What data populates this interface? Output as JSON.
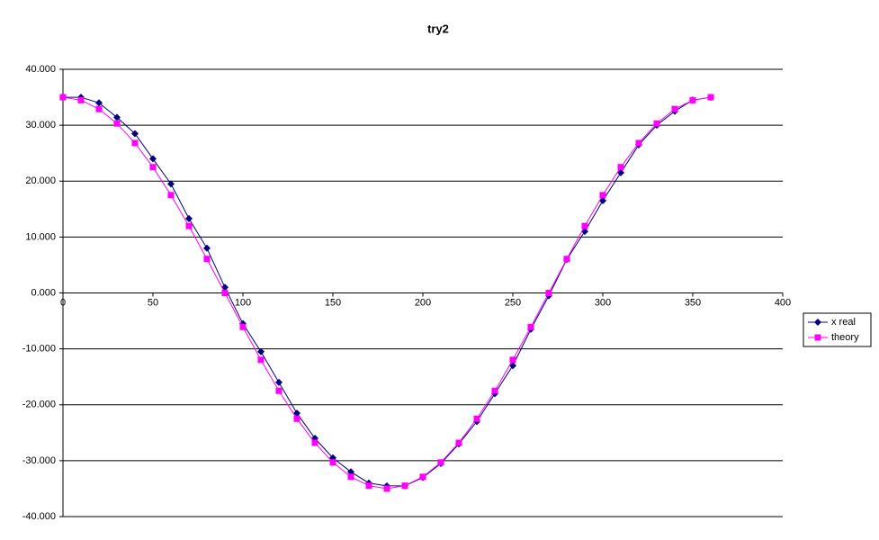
{
  "chart_data": {
    "type": "line",
    "title": "try2",
    "x": [
      0,
      10,
      20,
      30,
      40,
      50,
      60,
      70,
      80,
      90,
      100,
      110,
      120,
      130,
      140,
      150,
      160,
      170,
      180,
      190,
      200,
      210,
      220,
      230,
      240,
      250,
      260,
      270,
      280,
      290,
      300,
      310,
      320,
      330,
      340,
      350,
      360
    ],
    "series": [
      {
        "name": "x real",
        "color": "#000080",
        "marker": "diamond",
        "values": [
          35,
          35,
          34,
          31.4,
          28.5,
          24,
          19.5,
          13.3,
          8,
          1,
          -5.5,
          -10.5,
          -16,
          -21.5,
          -26,
          -29.5,
          -32,
          -34,
          -34.5,
          -34.5,
          -33,
          -30.5,
          -27,
          -23,
          -18,
          -13,
          -6.5,
          -0.5,
          6,
          11,
          16.5,
          21.5,
          26.5,
          30,
          32.5,
          34.5,
          35
        ]
      },
      {
        "name": "theory",
        "color": "#ff00ff",
        "marker": "square",
        "values": [
          35,
          34.47,
          32.89,
          30.31,
          26.81,
          22.5,
          17.5,
          11.97,
          6.08,
          0,
          -6.08,
          -11.97,
          -17.5,
          -22.5,
          -26.81,
          -30.31,
          -32.89,
          -34.47,
          -35,
          -34.47,
          -32.89,
          -30.31,
          -26.81,
          -22.5,
          -17.5,
          -11.97,
          -6.08,
          0,
          6.08,
          11.97,
          17.5,
          22.5,
          26.81,
          30.31,
          32.89,
          34.47,
          35
        ]
      }
    ],
    "xlim": [
      0,
      400
    ],
    "xticks": [
      0,
      50,
      100,
      150,
      200,
      250,
      300,
      350,
      400
    ],
    "ylim": [
      -40,
      40
    ],
    "yticks": [
      {
        "value": -40,
        "label": "-40.000"
      },
      {
        "value": -30,
        "label": "-30.000"
      },
      {
        "value": -20,
        "label": "-20.000"
      },
      {
        "value": -10,
        "label": "-10.000"
      },
      {
        "value": 0,
        "label": "0.000"
      },
      {
        "value": 10,
        "label": "10.000"
      },
      {
        "value": 20,
        "label": "20.000"
      },
      {
        "value": 30,
        "label": "30.000"
      },
      {
        "value": 40,
        "label": "40.000"
      }
    ],
    "grid": true,
    "legend": "right"
  }
}
